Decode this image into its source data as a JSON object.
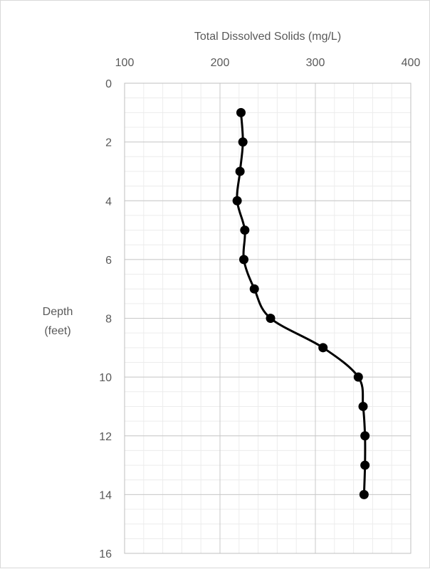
{
  "chart_data": {
    "type": "line",
    "title": "Total Dissolved Solids (mg/L)",
    "xlabel": "Total Dissolved Solids (mg/L)",
    "ylabel": [
      "Depth",
      "(feet)"
    ],
    "x_axis_position": "top",
    "y_axis_inverted": true,
    "xlim": [
      100,
      400
    ],
    "ylim": [
      0,
      16
    ],
    "xticks": [
      "100",
      "200",
      "300",
      "400"
    ],
    "yticks": [
      "0",
      "2",
      "4",
      "6",
      "8",
      "10",
      "12",
      "14",
      "16"
    ],
    "grid": true,
    "line_color": "#000000",
    "series": [
      {
        "x": [
          222,
          224,
          221,
          218,
          226,
          225,
          236,
          253,
          308,
          345,
          350,
          352,
          352,
          351
        ],
        "y": [
          1,
          2,
          3,
          4,
          5,
          6,
          7,
          8,
          9,
          10,
          11,
          12,
          13,
          14
        ]
      }
    ]
  }
}
